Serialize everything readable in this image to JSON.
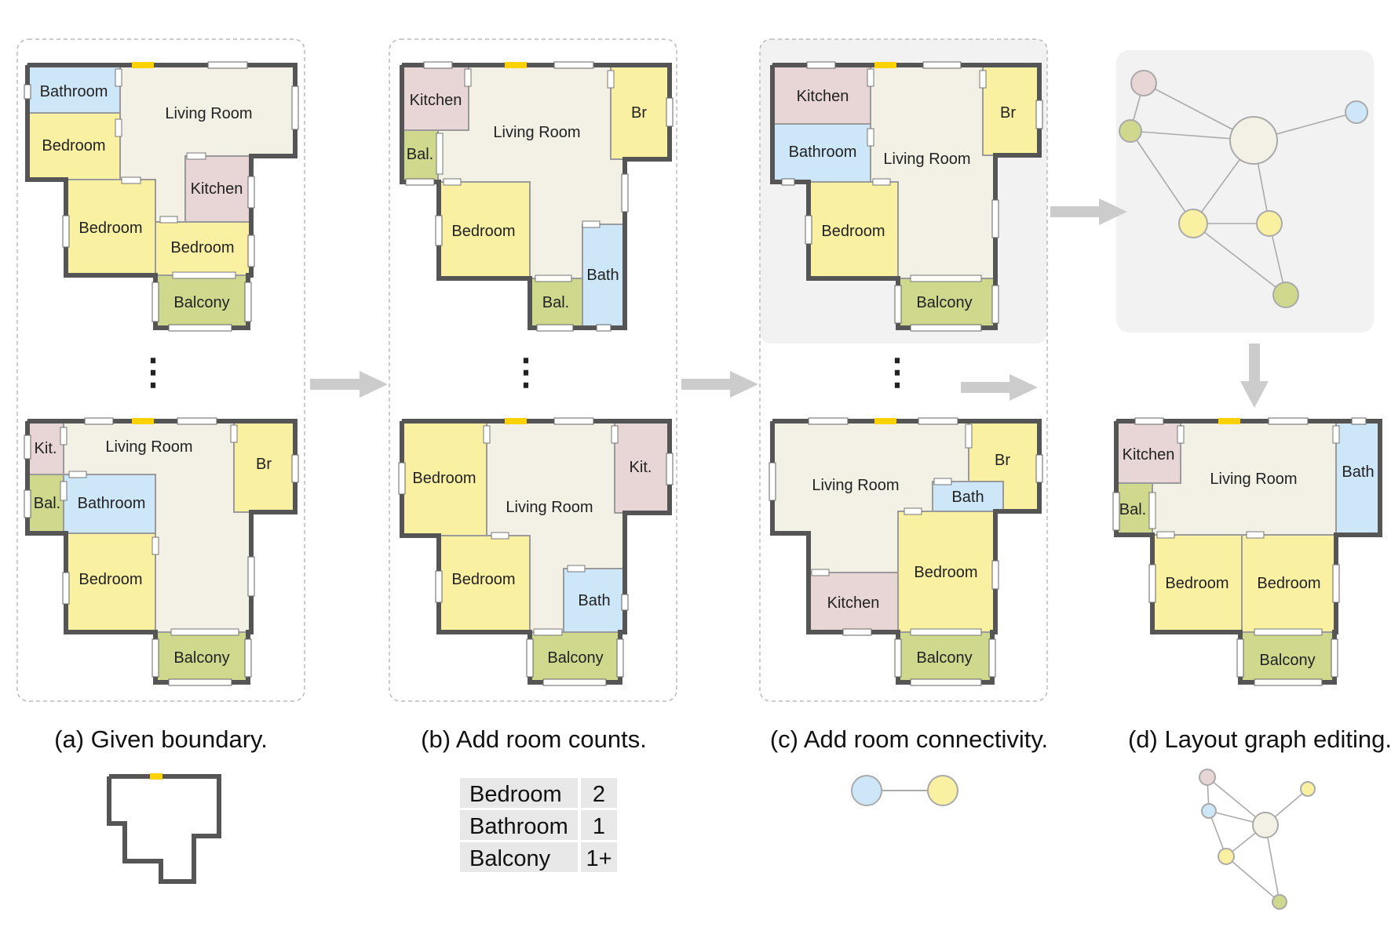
{
  "colors": {
    "living": "#f3f1e6",
    "bedroom": "#faf0a2",
    "bathroom": "#cde7f8",
    "kitchen": "#e8d5d5",
    "balcony": "#cfd88d",
    "wall": "#555555",
    "front_door": "#ffd100",
    "arrow": "#cccccc",
    "panel_bg": "#f2f2f2",
    "table_bg": "#e8e8e8"
  },
  "captions": {
    "a": "(a) Given boundary.",
    "b": "(b) Add room counts.",
    "c": "(c) Add room connectivity.",
    "d": "(d) Layout graph editing."
  },
  "ellipsis": "⋮",
  "counts_table": [
    {
      "room": "Bedroom",
      "count": "2"
    },
    {
      "room": "Bathroom",
      "count": "1"
    },
    {
      "room": "Balcony",
      "count": "1+"
    }
  ],
  "plans": {
    "a_top": [
      "Bathroom",
      "Living Room",
      "Bedroom",
      "Kitchen",
      "Bedroom",
      "Bedroom",
      "Balcony"
    ],
    "a_bottom": [
      "Kit.",
      "Living Room",
      "Br",
      "Bal.",
      "Bathroom",
      "Bedroom",
      "Balcony"
    ],
    "b_top": [
      "Kitchen",
      "Living Room",
      "Br",
      "Bal.",
      "Bedroom",
      "Bal.",
      "Bath"
    ],
    "b_bottom": [
      "Bedroom",
      "Living Room",
      "Kit.",
      "Bedroom",
      "Bath",
      "Balcony"
    ],
    "c_top": [
      "Kitchen",
      "Bathroom",
      "Living Room",
      "Br",
      "Bedroom",
      "Balcony"
    ],
    "c_bottom": [
      "Living Room",
      "Br",
      "Bath",
      "Bedroom",
      "Kitchen",
      "Balcony"
    ],
    "d_result": [
      "Kitchen",
      "Living Room",
      "Bath",
      "Bal.",
      "Bedroom",
      "Bedroom",
      "Balcony"
    ]
  }
}
